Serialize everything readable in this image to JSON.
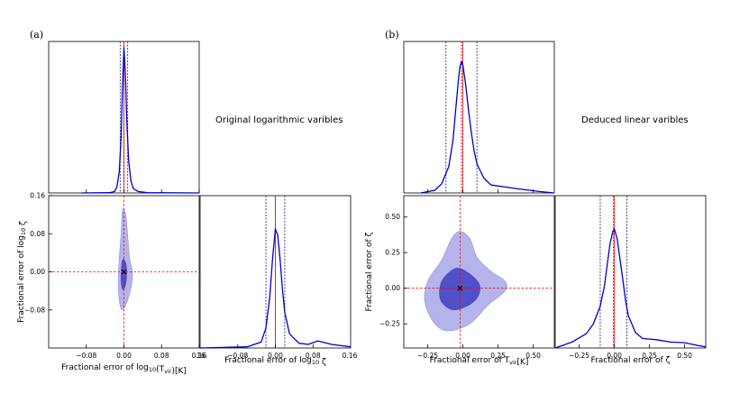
{
  "panel_a": {
    "label": "(a)",
    "note": "Original logarithmic varibles"
  },
  "panel_b": {
    "label": "(b)",
    "note": "Deduced linear varibles"
  },
  "colors": {
    "curve": "#0000cc",
    "truth_line": "#ff0000",
    "quantile_line": "#1a1a6e",
    "contour_inner": "#5050c8",
    "contour_outer": "#b4b4ea"
  },
  "chart_data": [
    {
      "id": "a-top",
      "type": "line",
      "x": [
        -0.09,
        -0.03,
        -0.02,
        -0.015,
        -0.01,
        -0.006,
        -0.003,
        0.0,
        0.003,
        0.006,
        0.01,
        0.015,
        0.02,
        0.03,
        0.05,
        0.16
      ],
      "y": [
        0.0,
        0.002,
        0.01,
        0.04,
        0.14,
        0.38,
        0.72,
        0.98,
        0.8,
        0.5,
        0.22,
        0.08,
        0.03,
        0.01,
        0.002,
        0.0
      ],
      "xlim": [
        -0.16,
        0.16
      ],
      "xticks": [
        -0.08,
        0.0,
        0.08,
        0.16
      ],
      "ylim": [
        0,
        1.02
      ],
      "truth": 0.0,
      "quantiles": [
        -0.008,
        0.0,
        0.008
      ]
    },
    {
      "id": "a-bottom-left",
      "type": "contour",
      "xlim": [
        -0.16,
        0.16
      ],
      "ylim": [
        -0.16,
        0.16
      ],
      "xticks": [
        -0.08,
        0.0,
        0.08,
        0.16
      ],
      "xtick_labels": [
        "−0.08",
        "0.00",
        "0.08",
        "0.16"
      ],
      "yticks": [
        -0.08,
        0.0,
        0.08,
        0.16
      ],
      "ytick_labels": [
        "−0.08",
        "0.00",
        "0.08",
        "0.16"
      ],
      "xlabel": "Fractional error of log",
      "xlabel_sub": "10",
      "xlabel_mid": "(T",
      "xlabel_sub2": "vir",
      "xlabel_end": ")[K]",
      "ylabel": "Fractional error of log",
      "ylabel_sub": "10",
      "ylabel_end": " ζ",
      "truth": [
        0.0,
        0.0
      ],
      "outer": [
        [
          -0.003,
          0.13
        ],
        [
          0.004,
          0.12
        ],
        [
          0.008,
          0.075
        ],
        [
          0.012,
          0.03
        ],
        [
          0.018,
          0.0
        ],
        [
          0.016,
          -0.03
        ],
        [
          0.006,
          -0.065
        ],
        [
          -0.004,
          -0.08
        ],
        [
          -0.01,
          -0.06
        ],
        [
          -0.012,
          -0.02
        ],
        [
          -0.01,
          0.03
        ],
        [
          -0.006,
          0.08
        ]
      ],
      "inner": [
        [
          -0.002,
          0.027
        ],
        [
          0.004,
          0.018
        ],
        [
          0.006,
          0.0
        ],
        [
          0.004,
          -0.025
        ],
        [
          -0.002,
          -0.038
        ],
        [
          -0.006,
          -0.02
        ],
        [
          -0.005,
          0.012
        ]
      ]
    },
    {
      "id": "a-bottom-right",
      "type": "line",
      "x": [
        -0.16,
        -0.06,
        -0.03,
        -0.02,
        -0.012,
        -0.006,
        0.0,
        0.005,
        0.01,
        0.015,
        0.02,
        0.03,
        0.05,
        0.07,
        0.09,
        0.12,
        0.16
      ],
      "y": [
        0.0,
        0.01,
        0.05,
        0.17,
        0.42,
        0.75,
        1.0,
        0.95,
        0.75,
        0.5,
        0.3,
        0.12,
        0.04,
        0.03,
        0.06,
        0.03,
        0.01
      ],
      "xlim": [
        -0.16,
        0.16
      ],
      "xticks": [
        -0.08,
        0.0,
        0.08
      ],
      "xtick_labels": [
        "−0.08",
        "0.00",
        "0.08"
      ],
      "edge_labels": [
        "16",
        "0.16"
      ],
      "ylim": [
        0,
        1.28
      ],
      "truth": 0.0,
      "quantiles": [
        -0.02,
        0.0,
        0.02
      ],
      "xlabel": "Fractional error of log",
      "xlabel_sub": "10",
      "xlabel_end": " ζ"
    },
    {
      "id": "b-top",
      "type": "line",
      "x": [
        -0.3,
        -0.2,
        -0.15,
        -0.1,
        -0.07,
        -0.05,
        -0.03,
        -0.02,
        -0.01,
        0.0,
        0.02,
        0.04,
        0.06,
        0.08,
        0.1,
        0.15,
        0.2,
        0.3,
        0.4,
        0.55,
        0.65
      ],
      "y": [
        0.0,
        0.02,
        0.07,
        0.2,
        0.4,
        0.64,
        0.88,
        0.96,
        1.0,
        0.97,
        0.82,
        0.63,
        0.46,
        0.32,
        0.22,
        0.11,
        0.06,
        0.045,
        0.03,
        0.01,
        0.0
      ],
      "xlim": [
        -0.42,
        0.65
      ],
      "xticks": [
        -0.25,
        0.0,
        0.25,
        0.5
      ],
      "ylim": [
        0,
        1.15
      ],
      "truth": 0.0,
      "quantiles": [
        -0.12,
        -0.01,
        0.1
      ]
    },
    {
      "id": "b-bottom-left",
      "type": "contour",
      "xlim": [
        -0.42,
        0.65
      ],
      "ylim": [
        -0.42,
        0.65
      ],
      "xticks": [
        -0.25,
        0.0,
        0.25,
        0.5
      ],
      "xtick_labels": [
        "−0.25",
        "0.00",
        "0.25",
        "0.50"
      ],
      "yticks": [
        -0.25,
        0.0,
        0.25,
        0.5
      ],
      "ytick_labels": [
        "−0.25",
        "0.00",
        "0.25",
        "0.50"
      ],
      "xlabel": "Fractional error of T",
      "xlabel_sub": "vir",
      "xlabel_end": "[K]",
      "ylabel": "Fractional error of ζ",
      "truth": [
        -0.02,
        0.0
      ],
      "outer": [
        [
          -0.02,
          0.4
        ],
        [
          0.05,
          0.35
        ],
        [
          0.1,
          0.22
        ],
        [
          0.2,
          0.12
        ],
        [
          0.3,
          0.05
        ],
        [
          0.3,
          -0.02
        ],
        [
          0.18,
          -0.12
        ],
        [
          0.05,
          -0.25
        ],
        [
          -0.1,
          -0.3
        ],
        [
          -0.2,
          -0.25
        ],
        [
          -0.27,
          -0.1
        ],
        [
          -0.25,
          0.05
        ],
        [
          -0.15,
          0.2
        ],
        [
          -0.08,
          0.35
        ]
      ],
      "inner": [
        [
          -0.05,
          0.14
        ],
        [
          0.05,
          0.1
        ],
        [
          0.12,
          0.02
        ],
        [
          0.1,
          -0.07
        ],
        [
          0.02,
          -0.13
        ],
        [
          -0.08,
          -0.15
        ],
        [
          -0.16,
          -0.08
        ],
        [
          -0.15,
          0.05
        ]
      ]
    },
    {
      "id": "b-bottom-right",
      "type": "line",
      "x": [
        -0.42,
        -0.3,
        -0.2,
        -0.15,
        -0.1,
        -0.07,
        -0.05,
        -0.03,
        -0.01,
        0.0,
        0.02,
        0.04,
        0.06,
        0.08,
        0.1,
        0.15,
        0.2,
        0.3,
        0.4,
        0.5,
        0.6,
        0.65
      ],
      "y": [
        0.0,
        0.05,
        0.12,
        0.2,
        0.35,
        0.52,
        0.7,
        0.88,
        0.98,
        1.0,
        0.92,
        0.75,
        0.58,
        0.4,
        0.27,
        0.13,
        0.08,
        0.07,
        0.05,
        0.045,
        0.02,
        0.01
      ],
      "xlim": [
        -0.42,
        0.65
      ],
      "xticks": [
        -0.25,
        0.0,
        0.25,
        0.5
      ],
      "xtick_labels": [
        "−0.25",
        "0.00",
        "0.25",
        "0.50"
      ],
      "ylim": [
        0,
        1.28
      ],
      "truth": 0.0,
      "quantiles": [
        -0.1,
        -0.005,
        0.09
      ],
      "xlabel": "Fractional error of ζ"
    }
  ]
}
